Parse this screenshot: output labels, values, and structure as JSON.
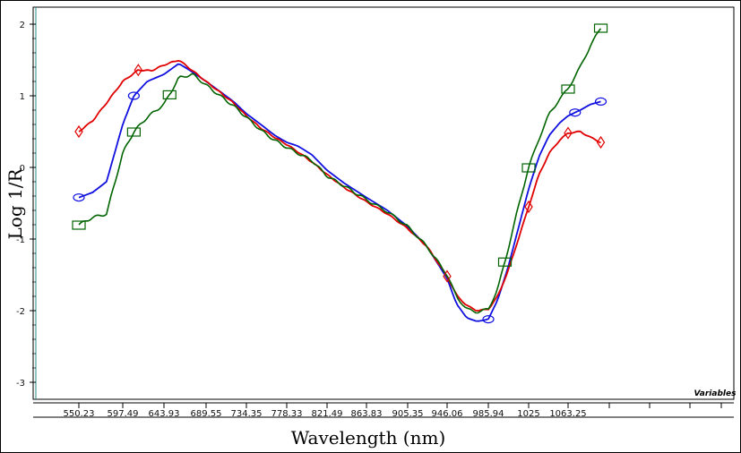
{
  "chart_data": {
    "type": "line",
    "xlabel": "Wavelength (nm)",
    "ylabel": "Log 1/R",
    "corner_label": "Variables",
    "x_tick_labels": [
      "550.23",
      "597.49",
      "643.93",
      "689.55",
      "734.35",
      "778.33",
      "821.49",
      "863.83",
      "905.35",
      "946.06",
      "985.94",
      "1025",
      "1063.25"
    ],
    "y_tick_labels": [
      "2",
      "1",
      "0",
      "-1",
      "-2",
      "-3"
    ],
    "ylim": [
      -3.3,
      2.2
    ],
    "grid": false,
    "legend": "none",
    "series": [
      {
        "color": "#e00000",
        "marker": "diamond",
        "points": [
          [
            550.23,
            0.5
          ],
          [
            565,
            0.65
          ],
          [
            580,
            0.9
          ],
          [
            597.49,
            1.2
          ],
          [
            615,
            1.36
          ],
          [
            630,
            1.35
          ],
          [
            643.93,
            1.43
          ],
          [
            660,
            1.5
          ],
          [
            675,
            1.35
          ],
          [
            689.55,
            1.2
          ],
          [
            705,
            1.05
          ],
          [
            720,
            0.9
          ],
          [
            734.35,
            0.72
          ],
          [
            750,
            0.55
          ],
          [
            765,
            0.42
          ],
          [
            778.33,
            0.32
          ],
          [
            790,
            0.22
          ],
          [
            805,
            0.08
          ],
          [
            821.49,
            -0.1
          ],
          [
            840,
            -0.28
          ],
          [
            863.83,
            -0.48
          ],
          [
            885,
            -0.65
          ],
          [
            905,
            -0.85
          ],
          [
            925,
            -1.1
          ],
          [
            946.06,
            -1.52
          ],
          [
            955,
            -1.78
          ],
          [
            965,
            -1.93
          ],
          [
            975,
            -2.0
          ],
          [
            985.94,
            -1.98
          ],
          [
            995,
            -1.8
          ],
          [
            1005,
            -1.45
          ],
          [
            1015,
            -1.0
          ],
          [
            1025,
            -0.55
          ],
          [
            1035,
            -0.1
          ],
          [
            1045,
            0.2
          ],
          [
            1055,
            0.38
          ],
          [
            1063.25,
            0.48
          ],
          [
            1075,
            0.5
          ],
          [
            1085,
            0.42
          ],
          [
            1095,
            0.35
          ]
        ],
        "marker_x": [
          550.23,
          615,
          946.06,
          1025,
          1063.25,
          1095
        ]
      },
      {
        "color": "#1010e0",
        "marker": "circle",
        "points": [
          [
            550.23,
            -0.42
          ],
          [
            565,
            -0.35
          ],
          [
            580,
            -0.2
          ],
          [
            597.49,
            0.6
          ],
          [
            610,
            1.0
          ],
          [
            625,
            1.2
          ],
          [
            643.93,
            1.3
          ],
          [
            660,
            1.45
          ],
          [
            675,
            1.33
          ],
          [
            689.55,
            1.2
          ],
          [
            705,
            1.06
          ],
          [
            720,
            0.92
          ],
          [
            734.35,
            0.75
          ],
          [
            750,
            0.6
          ],
          [
            765,
            0.45
          ],
          [
            778.33,
            0.35
          ],
          [
            790,
            0.3
          ],
          [
            805,
            0.18
          ],
          [
            821.49,
            -0.04
          ],
          [
            840,
            -0.22
          ],
          [
            863.83,
            -0.42
          ],
          [
            885,
            -0.6
          ],
          [
            905,
            -0.82
          ],
          [
            925,
            -1.1
          ],
          [
            946.06,
            -1.55
          ],
          [
            955,
            -1.9
          ],
          [
            965,
            -2.1
          ],
          [
            975,
            -2.15
          ],
          [
            985.94,
            -2.12
          ],
          [
            995,
            -1.85
          ],
          [
            1005,
            -1.4
          ],
          [
            1015,
            -0.85
          ],
          [
            1025,
            -0.3
          ],
          [
            1035,
            0.15
          ],
          [
            1045,
            0.45
          ],
          [
            1055,
            0.62
          ],
          [
            1063.25,
            0.72
          ],
          [
            1075,
            0.8
          ],
          [
            1085,
            0.88
          ],
          [
            1095,
            0.92
          ]
        ],
        "marker_x": [
          550.23,
          610,
          985.94,
          1070,
          1095
        ]
      },
      {
        "color": "#006400",
        "marker": "square",
        "points": [
          [
            550.23,
            -0.8
          ],
          [
            565,
            -0.7
          ],
          [
            580,
            -0.65
          ],
          [
            597.49,
            0.2
          ],
          [
            610,
            0.5
          ],
          [
            625,
            0.7
          ],
          [
            643.93,
            0.88
          ],
          [
            660,
            1.25
          ],
          [
            675,
            1.3
          ],
          [
            689.55,
            1.15
          ],
          [
            705,
            1.0
          ],
          [
            720,
            0.86
          ],
          [
            734.35,
            0.7
          ],
          [
            750,
            0.52
          ],
          [
            765,
            0.38
          ],
          [
            778.33,
            0.28
          ],
          [
            790,
            0.2
          ],
          [
            805,
            0.1
          ],
          [
            821.49,
            -0.12
          ],
          [
            840,
            -0.26
          ],
          [
            863.83,
            -0.45
          ],
          [
            885,
            -0.62
          ],
          [
            905,
            -0.82
          ],
          [
            925,
            -1.1
          ],
          [
            946.06,
            -1.5
          ],
          [
            955,
            -1.8
          ],
          [
            965,
            -1.98
          ],
          [
            975,
            -2.02
          ],
          [
            985.94,
            -1.98
          ],
          [
            995,
            -1.7
          ],
          [
            1005,
            -1.15
          ],
          [
            1015,
            -0.55
          ],
          [
            1025,
            0.0
          ],
          [
            1035,
            0.4
          ],
          [
            1045,
            0.75
          ],
          [
            1055,
            0.95
          ],
          [
            1063.25,
            1.1
          ],
          [
            1075,
            1.4
          ],
          [
            1085,
            1.7
          ],
          [
            1095,
            1.95
          ]
        ],
        "marker_x": [
          550.23,
          610,
          650,
          1002,
          1025,
          1063.25,
          1095
        ]
      }
    ]
  }
}
